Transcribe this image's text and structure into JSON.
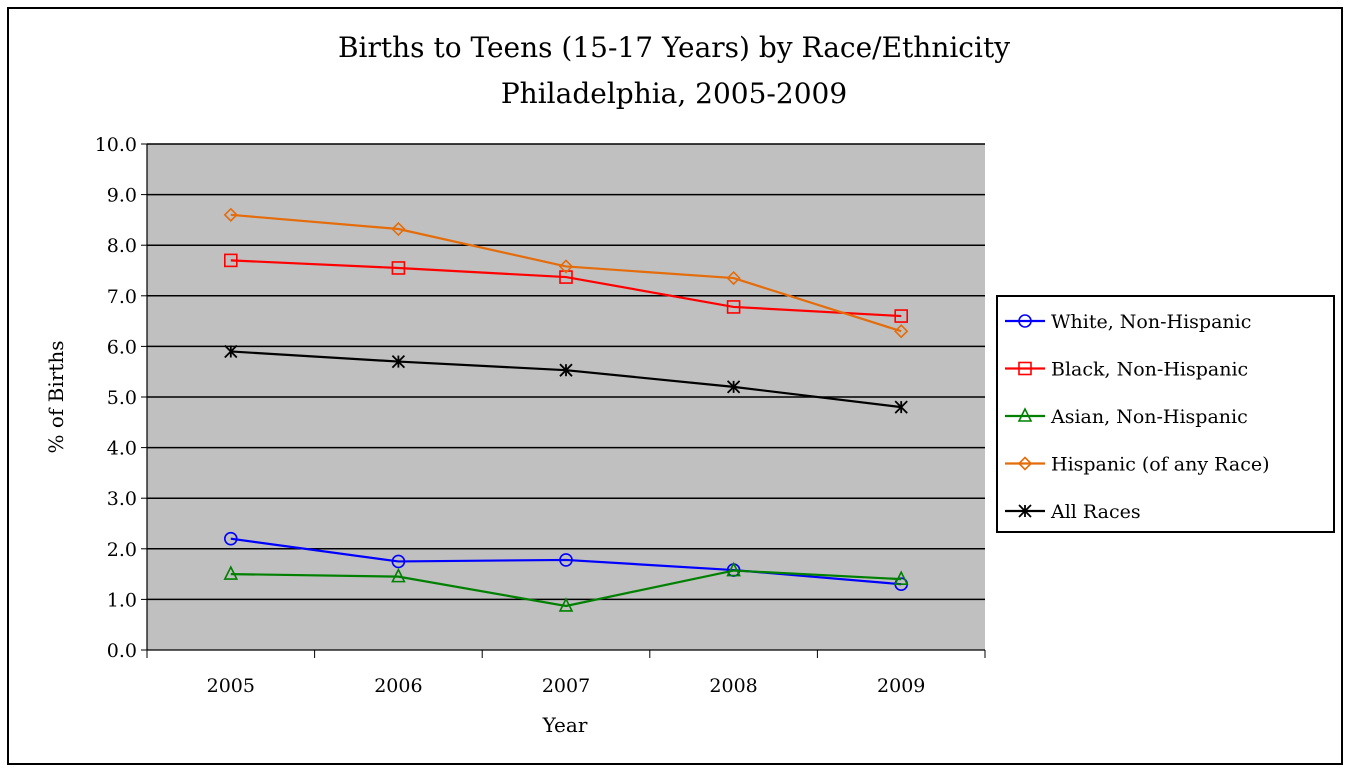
{
  "chart_data": {
    "type": "line",
    "title": "Births to Teens (15-17 Years) by Race/Ethnicity",
    "subtitle": "Philadelphia, 2005-2009",
    "xlabel": "Year",
    "ylabel": "% of Births",
    "categories": [
      "2005",
      "2006",
      "2007",
      "2008",
      "2009"
    ],
    "ylim": [
      0,
      10
    ],
    "yticks": [
      "0.0",
      "1.0",
      "2.0",
      "3.0",
      "4.0",
      "5.0",
      "6.0",
      "7.0",
      "8.0",
      "9.0",
      "10.0"
    ],
    "grid": true,
    "plot_background": "#c0c0c0",
    "legend_position": "right",
    "series": [
      {
        "name": "White, Non-Hispanic",
        "values": [
          2.2,
          1.75,
          1.78,
          1.58,
          1.3
        ],
        "color": "#0000ff",
        "marker": "circle"
      },
      {
        "name": "Black, Non-Hispanic",
        "values": [
          7.7,
          7.55,
          7.37,
          6.78,
          6.6
        ],
        "color": "#ff0000",
        "marker": "square"
      },
      {
        "name": "Asian, Non-Hispanic",
        "values": [
          1.5,
          1.45,
          0.87,
          1.57,
          1.4
        ],
        "color": "#008000",
        "marker": "triangle"
      },
      {
        "name": "Hispanic (of any Race)",
        "values": [
          8.6,
          8.32,
          7.58,
          7.35,
          6.3
        ],
        "color": "#e46c0a",
        "marker": "diamond"
      },
      {
        "name": "All Races",
        "values": [
          5.9,
          5.7,
          5.53,
          5.2,
          4.8
        ],
        "color": "#000000",
        "marker": "star"
      }
    ]
  }
}
